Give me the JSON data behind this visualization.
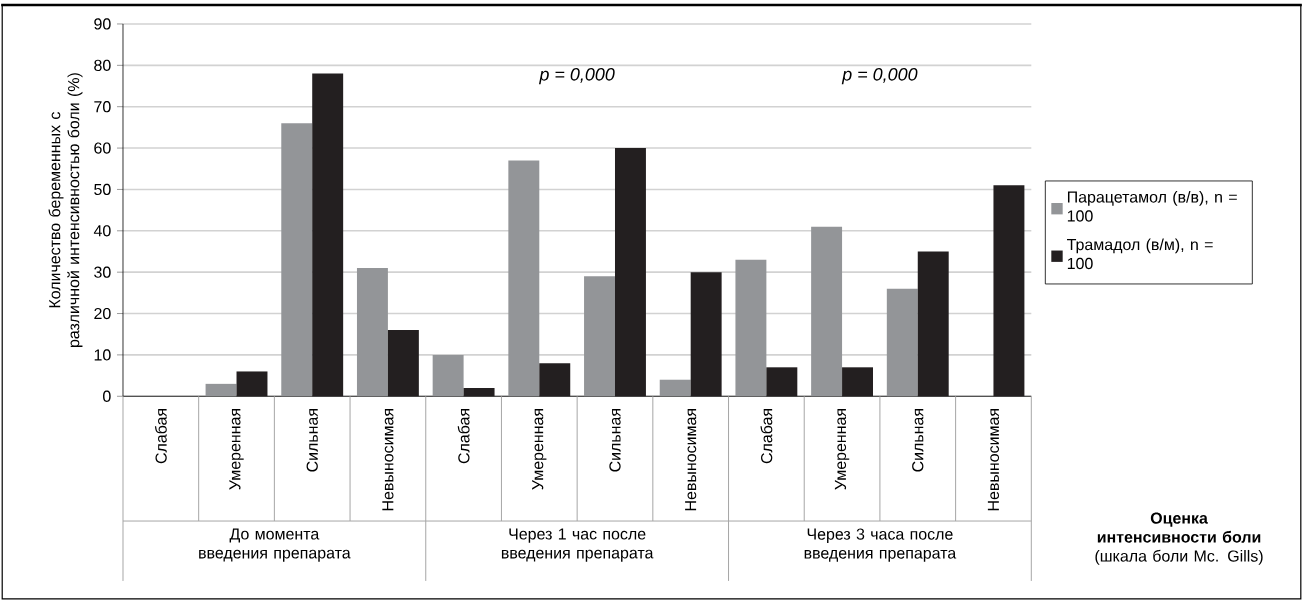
{
  "chart_data": {
    "type": "bar",
    "ylabel": "Количество беременных с различной интенсивностью боли (%)",
    "categories": [
      "Слабая",
      "Умеренная",
      "Сильная",
      "Невыносимая",
      "Слабая",
      "Умеренная",
      "Сильная",
      "Невыносимая",
      "Слабая",
      "Умеренная",
      "Сильная",
      "Невыносимая"
    ],
    "series": [
      {
        "name": "Парацетамол (в/в), n = 100",
        "color": "#939598",
        "values": [
          0,
          3,
          66,
          31,
          10,
          57,
          29,
          4,
          33,
          41,
          26,
          0
        ]
      },
      {
        "name": "Трамадол (в/м), n = 100",
        "color": "#231f20",
        "values": [
          0,
          6,
          78,
          16,
          2,
          8,
          60,
          30,
          7,
          7,
          35,
          51
        ]
      }
    ],
    "ylim": [
      0,
      90
    ],
    "yticks": [
      0,
      10,
      20,
      30,
      40,
      50,
      60,
      70,
      80,
      90
    ],
    "grid": "y",
    "legend": "right",
    "annotations": [
      "До момента введения препарата",
      "Через 1 час после введения препарата",
      "Через 3 часа после введения препарата",
      "p = 0,000",
      "p = 0,000",
      "**Оценка интенсивности боли** (шкала боли Mc. Gills)"
    ]
  }
}
